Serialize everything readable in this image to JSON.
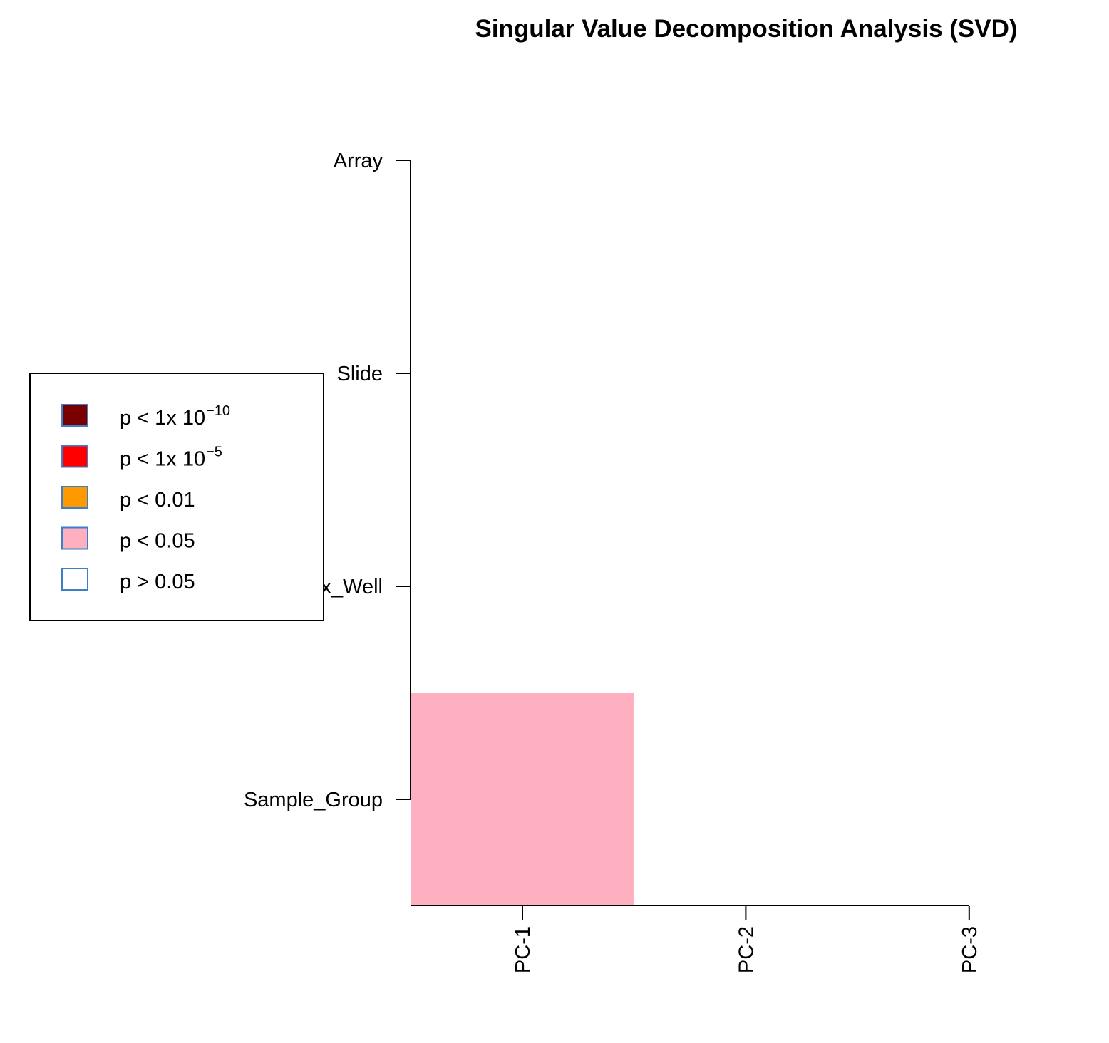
{
  "chart_data": {
    "type": "heatmap",
    "title": "Singular Value Decomposition Analysis (SVD)",
    "xlabel": "",
    "ylabel": "",
    "x_categories": [
      "PC-1",
      "PC-2",
      "PC-3"
    ],
    "y_categories": [
      "Array",
      "Slide",
      "Sentrix_Well",
      "Sample_Group"
    ],
    "cells": [
      {
        "row": "Sample_Group",
        "col": "PC-1",
        "level": "p < 0.05"
      },
      {
        "row": "Sample_Group",
        "col": "PC-2",
        "level": "p > 0.05"
      },
      {
        "row": "Sample_Group",
        "col": "PC-3",
        "level": "p > 0.05"
      },
      {
        "row": "Sentrix_Well",
        "col": "PC-1",
        "level": "p > 0.05"
      },
      {
        "row": "Sentrix_Well",
        "col": "PC-2",
        "level": "p > 0.05"
      },
      {
        "row": "Sentrix_Well",
        "col": "PC-3",
        "level": "p > 0.05"
      },
      {
        "row": "Slide",
        "col": "PC-1",
        "level": "p > 0.05"
      },
      {
        "row": "Slide",
        "col": "PC-2",
        "level": "p > 0.05"
      },
      {
        "row": "Slide",
        "col": "PC-3",
        "level": "p > 0.05"
      },
      {
        "row": "Array",
        "col": "PC-1",
        "level": "p > 0.05"
      },
      {
        "row": "Array",
        "col": "PC-2",
        "level": "p > 0.05"
      },
      {
        "row": "Array",
        "col": "PC-3",
        "level": "p > 0.05"
      }
    ],
    "legend": {
      "position": "left",
      "entries": [
        {
          "label": "p < 1x 10",
          "exponent": "−10",
          "color": "#7a0000"
        },
        {
          "label": "p < 1x 10",
          "exponent": "−5",
          "color": "#ff0000"
        },
        {
          "label": "p < 0.01",
          "exponent": "",
          "color": "#ff9900"
        },
        {
          "label": "p < 0.05",
          "exponent": "",
          "color": "#ffb0c0"
        },
        {
          "label": "p > 0.05",
          "exponent": "",
          "color": "#ffffff"
        }
      ]
    },
    "legend_border_color": "#3a7fc8",
    "grid": false
  }
}
